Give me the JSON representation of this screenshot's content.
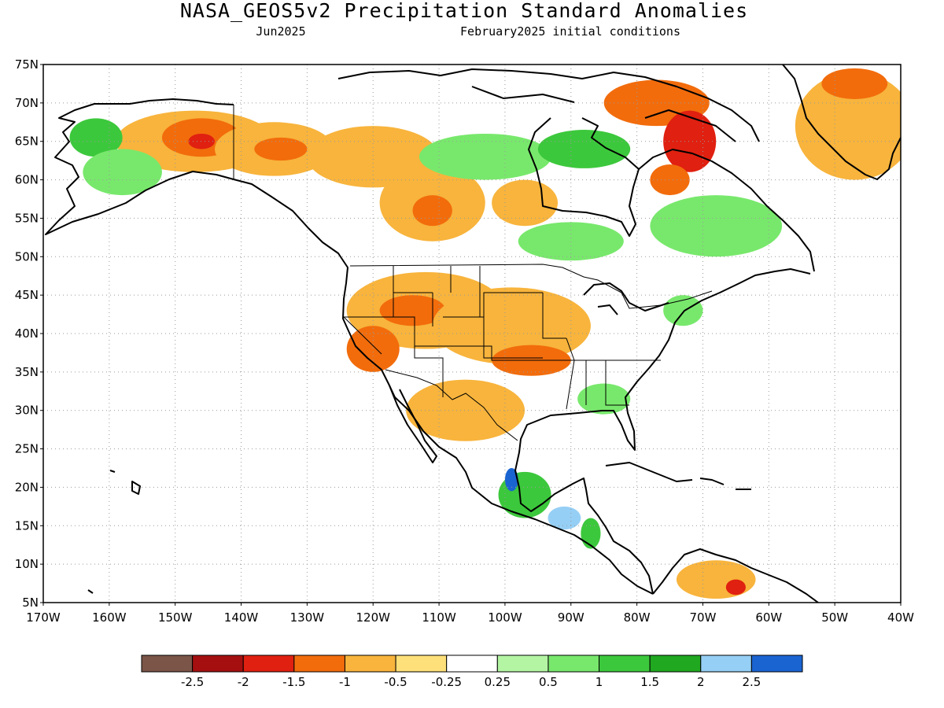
{
  "title": "NASA_GEOS5v2 Precipitation Standard Anomalies",
  "subtitle_left": "Jun2025",
  "subtitle_right": "February2025 initial conditions",
  "map": {
    "lon_range": [
      -170,
      -40
    ],
    "lat_range": [
      5,
      75
    ],
    "lat_ticks": [
      {
        "value": 75,
        "label": "75N"
      },
      {
        "value": 70,
        "label": "70N"
      },
      {
        "value": 65,
        "label": "65N"
      },
      {
        "value": 60,
        "label": "60N"
      },
      {
        "value": 55,
        "label": "55N"
      },
      {
        "value": 50,
        "label": "50N"
      },
      {
        "value": 45,
        "label": "45N"
      },
      {
        "value": 40,
        "label": "40N"
      },
      {
        "value": 35,
        "label": "35N"
      },
      {
        "value": 30,
        "label": "30N"
      },
      {
        "value": 25,
        "label": "25N"
      },
      {
        "value": 20,
        "label": "20N"
      },
      {
        "value": 15,
        "label": "15N"
      },
      {
        "value": 10,
        "label": "10N"
      },
      {
        "value": 5,
        "label": "5N"
      }
    ],
    "lon_ticks": [
      {
        "value": -170,
        "label": "170W"
      },
      {
        "value": -160,
        "label": "160W"
      },
      {
        "value": -150,
        "label": "150W"
      },
      {
        "value": -140,
        "label": "140W"
      },
      {
        "value": -130,
        "label": "130W"
      },
      {
        "value": -120,
        "label": "120W"
      },
      {
        "value": -110,
        "label": "110W"
      },
      {
        "value": -100,
        "label": "100W"
      },
      {
        "value": -90,
        "label": "90W"
      },
      {
        "value": -80,
        "label": "80W"
      },
      {
        "value": -70,
        "label": "70W"
      },
      {
        "value": -60,
        "label": "60W"
      },
      {
        "value": -50,
        "label": "50W"
      },
      {
        "value": -40,
        "label": "40W"
      }
    ],
    "grid": true
  },
  "colorbar": {
    "colors": [
      "#7a5548",
      "#a50f0f",
      "#e02010",
      "#f26c0c",
      "#f8b43c",
      "#fde07a",
      "#ffffff",
      "#b4f5a4",
      "#78e86c",
      "#3cc83c",
      "#20a820",
      "#96cff5",
      "#1a64d2"
    ],
    "labels": [
      "-2.5",
      "-2",
      "-1.5",
      "-1",
      "-0.5",
      "-0.25",
      "0.25",
      "0.5",
      "1",
      "1.5",
      "2",
      "2.5"
    ]
  },
  "anomaly_patches": [
    {
      "lon": -147,
      "lat": 65,
      "rx": 12,
      "ry": 4,
      "color": "#f8b43c"
    },
    {
      "lon": -146,
      "lat": 65.5,
      "rx": 6,
      "ry": 2.5,
      "color": "#f26c0c"
    },
    {
      "lon": -146,
      "lat": 65,
      "rx": 2,
      "ry": 1,
      "color": "#e02010"
    },
    {
      "lon": -162,
      "lat": 65.5,
      "rx": 4,
      "ry": 2.5,
      "color": "#3cc83c"
    },
    {
      "lon": -158,
      "lat": 61,
      "rx": 6,
      "ry": 3,
      "color": "#78e86c"
    },
    {
      "lon": -135,
      "lat": 64,
      "rx": 9,
      "ry": 3.5,
      "color": "#f8b43c"
    },
    {
      "lon": -134,
      "lat": 64,
      "rx": 4,
      "ry": 1.5,
      "color": "#f26c0c"
    },
    {
      "lon": -120,
      "lat": 63,
      "rx": 10,
      "ry": 4,
      "color": "#f8b43c"
    },
    {
      "lon": -111,
      "lat": 57,
      "rx": 8,
      "ry": 5,
      "color": "#f8b43c"
    },
    {
      "lon": -111,
      "lat": 56,
      "rx": 3,
      "ry": 2,
      "color": "#f26c0c"
    },
    {
      "lon": -103,
      "lat": 63,
      "rx": 10,
      "ry": 3,
      "color": "#78e86c"
    },
    {
      "lon": -88,
      "lat": 64,
      "rx": 7,
      "ry": 2.5,
      "color": "#3cc83c"
    },
    {
      "lon": -97,
      "lat": 57,
      "rx": 5,
      "ry": 3,
      "color": "#f8b43c"
    },
    {
      "lon": -90,
      "lat": 52,
      "rx": 8,
      "ry": 2.5,
      "color": "#78e86c"
    },
    {
      "lon": -77,
      "lat": 70,
      "rx": 8,
      "ry": 3,
      "color": "#f26c0c"
    },
    {
      "lon": -72,
      "lat": 65,
      "rx": 4,
      "ry": 4,
      "color": "#e02010"
    },
    {
      "lon": -75,
      "lat": 60,
      "rx": 3,
      "ry": 2,
      "color": "#f26c0c"
    },
    {
      "lon": -68,
      "lat": 54,
      "rx": 10,
      "ry": 4,
      "color": "#78e86c"
    },
    {
      "lon": -47,
      "lat": 67,
      "rx": 9,
      "ry": 7,
      "color": "#f8b43c"
    },
    {
      "lon": -47,
      "lat": 72.5,
      "rx": 5,
      "ry": 2,
      "color": "#f26c0c"
    },
    {
      "lon": -112,
      "lat": 43,
      "rx": 12,
      "ry": 5,
      "color": "#f8b43c"
    },
    {
      "lon": -114,
      "lat": 43,
      "rx": 5,
      "ry": 2,
      "color": "#f26c0c"
    },
    {
      "lon": -99,
      "lat": 41,
      "rx": 12,
      "ry": 5,
      "color": "#f8b43c"
    },
    {
      "lon": -96,
      "lat": 36.5,
      "rx": 6,
      "ry": 2,
      "color": "#f26c0c"
    },
    {
      "lon": -120,
      "lat": 38,
      "rx": 4,
      "ry": 3,
      "color": "#f26c0c"
    },
    {
      "lon": -106,
      "lat": 30,
      "rx": 9,
      "ry": 4,
      "color": "#f8b43c"
    },
    {
      "lon": -85,
      "lat": 31.5,
      "rx": 4,
      "ry": 2,
      "color": "#78e86c"
    },
    {
      "lon": -97,
      "lat": 19,
      "rx": 4,
      "ry": 3,
      "color": "#3cc83c"
    },
    {
      "lon": -99,
      "lat": 21,
      "rx": 1,
      "ry": 1.5,
      "color": "#1a64d2"
    },
    {
      "lon": -91,
      "lat": 16,
      "rx": 2.5,
      "ry": 1.5,
      "color": "#96cff5"
    },
    {
      "lon": -87,
      "lat": 14,
      "rx": 1.5,
      "ry": 2,
      "color": "#3cc83c"
    },
    {
      "lon": -68,
      "lat": 8,
      "rx": 6,
      "ry": 2.5,
      "color": "#f8b43c"
    },
    {
      "lon": -65,
      "lat": 7,
      "rx": 1.5,
      "ry": 1,
      "color": "#e02010"
    },
    {
      "lon": -73,
      "lat": 43,
      "rx": 3,
      "ry": 2,
      "color": "#78e86c"
    }
  ]
}
